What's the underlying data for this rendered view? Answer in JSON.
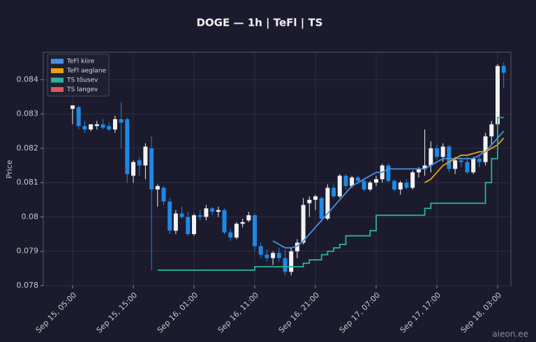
{
  "chart_data": {
    "type": "candlestick",
    "title": "DOGE — 1h  |  TeFl  |  TS",
    "ylabel": "Price",
    "watermark": "aieon.ee",
    "x": [
      "Sep 15, 05:00",
      "Sep 15, 06:00",
      "Sep 15, 07:00",
      "Sep 15, 08:00",
      "Sep 15, 09:00",
      "Sep 15, 10:00",
      "Sep 15, 11:00",
      "Sep 15, 12:00",
      "Sep 15, 13:00",
      "Sep 15, 14:00",
      "Sep 15, 15:00",
      "Sep 15, 16:00",
      "Sep 15, 17:00",
      "Sep 15, 18:00",
      "Sep 15, 19:00",
      "Sep 15, 20:00",
      "Sep 15, 21:00",
      "Sep 15, 22:00",
      "Sep 15, 23:00",
      "Sep 16, 00:00",
      "Sep 16, 01:00",
      "Sep 16, 02:00",
      "Sep 16, 03:00",
      "Sep 16, 04:00",
      "Sep 16, 05:00",
      "Sep 16, 06:00",
      "Sep 16, 07:00",
      "Sep 16, 08:00",
      "Sep 16, 09:00",
      "Sep 16, 10:00",
      "Sep 16, 11:00",
      "Sep 16, 12:00",
      "Sep 16, 13:00",
      "Sep 16, 14:00",
      "Sep 16, 15:00",
      "Sep 16, 16:00",
      "Sep 16, 17:00",
      "Sep 16, 18:00",
      "Sep 16, 19:00",
      "Sep 16, 20:00",
      "Sep 16, 21:00",
      "Sep 16, 22:00",
      "Sep 16, 23:00",
      "Sep 17, 00:00",
      "Sep 17, 01:00",
      "Sep 17, 02:00",
      "Sep 17, 03:00",
      "Sep 17, 04:00",
      "Sep 17, 05:00",
      "Sep 17, 06:00",
      "Sep 17, 07:00",
      "Sep 17, 08:00",
      "Sep 17, 09:00",
      "Sep 17, 10:00",
      "Sep 17, 11:00",
      "Sep 17, 12:00",
      "Sep 17, 13:00",
      "Sep 17, 14:00",
      "Sep 17, 15:00",
      "Sep 17, 16:00",
      "Sep 17, 17:00",
      "Sep 17, 18:00",
      "Sep 17, 19:00",
      "Sep 17, 20:00",
      "Sep 17, 21:00",
      "Sep 17, 22:00",
      "Sep 17, 23:00",
      "Sep 18, 00:00",
      "Sep 18, 01:00",
      "Sep 18, 02:00",
      "Sep 18, 03:00",
      "Sep 18, 04:00"
    ],
    "open": [
      0.08315,
      0.0832,
      0.08265,
      0.08255,
      0.08265,
      0.0827,
      0.08265,
      0.08255,
      0.08285,
      0.08285,
      0.0812,
      0.08165,
      0.0815,
      0.082,
      0.0808,
      0.08085,
      0.08045,
      0.0796,
      0.0801,
      0.08,
      0.0795,
      0.08005,
      0.08,
      0.08025,
      0.08015,
      0.0802,
      0.07955,
      0.0794,
      0.0798,
      0.0799,
      0.08005,
      0.07915,
      0.0789,
      0.0788,
      0.07895,
      0.0788,
      0.0784,
      0.079,
      0.07925,
      0.0804,
      0.0805,
      0.08055,
      0.07995,
      0.08085,
      0.0806,
      0.0812,
      0.0809,
      0.08115,
      0.08105,
      0.0808,
      0.081,
      0.0811,
      0.0815,
      0.08105,
      0.0808,
      0.081,
      0.08085,
      0.0813,
      0.0814,
      0.0815,
      0.082,
      0.08175,
      0.08205,
      0.0814,
      0.08165,
      0.0816,
      0.0813,
      0.0817,
      0.0816,
      0.08235,
      0.0827,
      0.0844
    ],
    "high": [
      0.08325,
      0.08325,
      0.0828,
      0.0827,
      0.0828,
      0.08285,
      0.08275,
      0.08295,
      0.08335,
      0.0829,
      0.08165,
      0.08175,
      0.08215,
      0.08235,
      0.08095,
      0.0809,
      0.08055,
      0.0802,
      0.0803,
      0.08015,
      0.0801,
      0.0802,
      0.08035,
      0.0803,
      0.0803,
      0.08025,
      0.07965,
      0.07985,
      0.07995,
      0.08015,
      0.0801,
      0.07925,
      0.07905,
      0.079,
      0.0791,
      0.07905,
      0.0791,
      0.07935,
      0.08055,
      0.0806,
      0.08065,
      0.0806,
      0.08095,
      0.08095,
      0.08125,
      0.08125,
      0.0812,
      0.0812,
      0.0811,
      0.08105,
      0.0812,
      0.08155,
      0.08155,
      0.0811,
      0.08105,
      0.0811,
      0.08135,
      0.08145,
      0.08255,
      0.0822,
      0.0821,
      0.08215,
      0.0821,
      0.08175,
      0.08175,
      0.08175,
      0.08175,
      0.0818,
      0.08245,
      0.0828,
      0.08445,
      0.0845
    ],
    "low": [
      0.0827,
      0.08255,
      0.08245,
      0.0825,
      0.08255,
      0.08255,
      0.0825,
      0.08245,
      0.082,
      0.081,
      0.081,
      0.0812,
      0.0811,
      0.07845,
      0.0803,
      0.08035,
      0.0795,
      0.0795,
      0.07995,
      0.07945,
      0.07945,
      0.0799,
      0.0799,
      0.08005,
      0.08,
      0.0795,
      0.0793,
      0.07935,
      0.0797,
      0.07985,
      0.079,
      0.0788,
      0.0787,
      0.0786,
      0.0787,
      0.0783,
      0.0783,
      0.0788,
      0.0792,
      0.08,
      0.0802,
      0.07985,
      0.0799,
      0.08055,
      0.08055,
      0.0808,
      0.08085,
      0.08095,
      0.08075,
      0.08075,
      0.0809,
      0.081,
      0.081,
      0.08075,
      0.08065,
      0.0808,
      0.0808,
      0.08115,
      0.0812,
      0.0813,
      0.08165,
      0.0816,
      0.0813,
      0.08125,
      0.08145,
      0.08125,
      0.08125,
      0.08145,
      0.0815,
      0.0821,
      0.0826,
      0.08375
    ],
    "close": [
      0.08325,
      0.08265,
      0.08255,
      0.0827,
      0.0827,
      0.0826,
      0.08255,
      0.08285,
      0.08275,
      0.08125,
      0.0816,
      0.0815,
      0.08205,
      0.0808,
      0.0809,
      0.08045,
      0.0796,
      0.0801,
      0.08,
      0.0795,
      0.08005,
      0.08,
      0.08025,
      0.08015,
      0.0802,
      0.07955,
      0.0794,
      0.0798,
      0.07985,
      0.08005,
      0.07915,
      0.0789,
      0.0788,
      0.07895,
      0.0788,
      0.0784,
      0.079,
      0.07925,
      0.08035,
      0.0805,
      0.0806,
      0.07995,
      0.08085,
      0.0806,
      0.0812,
      0.0809,
      0.08115,
      0.08105,
      0.0808,
      0.081,
      0.0811,
      0.0815,
      0.08105,
      0.0808,
      0.081,
      0.08085,
      0.0813,
      0.0814,
      0.0815,
      0.082,
      0.08175,
      0.08205,
      0.0814,
      0.08165,
      0.0816,
      0.0813,
      0.0817,
      0.0816,
      0.08235,
      0.0827,
      0.0844,
      0.0842
    ],
    "up_color": "#f2f2f2",
    "down_color": "#1e88e5",
    "lines": [
      {
        "name": "TeFl kiire",
        "color": "#4a90e2",
        "step": false,
        "values": [
          null,
          null,
          null,
          null,
          null,
          null,
          null,
          null,
          null,
          null,
          null,
          null,
          null,
          null,
          null,
          null,
          null,
          null,
          null,
          null,
          null,
          null,
          null,
          null,
          null,
          null,
          null,
          null,
          null,
          null,
          null,
          null,
          null,
          0.0793,
          0.0792,
          0.0791,
          0.0791,
          0.07915,
          0.0793,
          0.0795,
          0.0797,
          0.0799,
          0.0801,
          0.0803,
          0.0805,
          0.0807,
          0.0809,
          0.081,
          0.0811,
          0.0812,
          0.0813,
          0.0813,
          0.0814,
          0.0814,
          0.0814,
          0.0814,
          0.0814,
          0.0814,
          0.0814,
          0.0815,
          0.0816,
          0.0817,
          0.0817,
          0.0817,
          0.0817,
          0.0817,
          0.0817,
          0.0818,
          0.0819,
          0.0821,
          0.0823,
          0.0825
        ]
      },
      {
        "name": "TeFl aeglane",
        "color": "#e8a317",
        "step": false,
        "values": [
          null,
          null,
          null,
          null,
          null,
          null,
          null,
          null,
          null,
          null,
          null,
          null,
          null,
          null,
          null,
          null,
          null,
          null,
          null,
          null,
          null,
          null,
          null,
          null,
          null,
          null,
          null,
          null,
          null,
          null,
          null,
          null,
          null,
          null,
          null,
          null,
          null,
          null,
          null,
          null,
          null,
          null,
          null,
          null,
          null,
          null,
          null,
          null,
          null,
          null,
          null,
          null,
          null,
          null,
          null,
          null,
          null,
          null,
          0.081,
          0.0811,
          0.0813,
          0.0815,
          0.0816,
          0.0817,
          0.0818,
          0.0818,
          0.08185,
          0.0819,
          0.0819,
          0.082,
          0.0821,
          0.0823
        ]
      },
      {
        "name": "TS tõusev",
        "color": "#2bb39a",
        "step": true,
        "values": [
          null,
          null,
          null,
          null,
          null,
          null,
          null,
          null,
          null,
          null,
          null,
          null,
          null,
          null,
          0.07845,
          0.07845,
          0.07845,
          0.07845,
          0.07845,
          0.07845,
          0.07845,
          0.07845,
          0.07845,
          0.07845,
          0.07845,
          0.07845,
          0.07845,
          0.07845,
          0.07845,
          0.07845,
          0.07855,
          0.07855,
          0.07855,
          0.07855,
          0.07855,
          0.07855,
          0.07855,
          0.07855,
          0.07865,
          0.07875,
          0.07875,
          0.0789,
          0.079,
          0.0791,
          0.0792,
          0.07945,
          0.07945,
          0.07945,
          0.07945,
          0.0796,
          0.08005,
          0.08005,
          0.08005,
          0.08005,
          0.08005,
          0.08005,
          0.08005,
          0.08005,
          0.08025,
          0.0804,
          0.0804,
          0.0804,
          0.0804,
          0.0804,
          0.0804,
          0.0804,
          0.0804,
          0.0804,
          0.081,
          0.0817,
          0.0829,
          0.0829
        ]
      },
      {
        "name": "TS langev",
        "color": "#e05555",
        "step": true,
        "values": [
          null,
          null,
          null,
          null,
          null,
          null,
          null,
          null,
          null,
          null,
          null,
          null,
          null,
          null,
          null,
          null,
          null,
          null,
          null,
          null,
          null,
          null,
          null,
          null,
          null,
          null,
          null,
          null,
          null,
          null,
          null,
          null,
          null,
          null,
          null,
          null,
          null,
          null,
          null,
          null,
          null,
          null,
          null,
          null,
          null,
          null,
          null,
          null,
          null,
          null,
          null,
          null,
          null,
          null,
          null,
          null,
          null,
          null,
          null,
          null,
          null,
          null,
          null,
          null,
          null,
          null,
          null,
          null,
          null,
          null,
          null,
          null
        ]
      }
    ],
    "ylim": [
      0.078,
      0.0848
    ],
    "yticks": [
      0.078,
      0.079,
      0.08,
      0.081,
      0.082,
      0.083,
      0.084
    ],
    "xticks": [
      "Sep 15, 05:00",
      "Sep 15, 15:00",
      "Sep 16, 01:00",
      "Sep 16, 11:00",
      "Sep 16, 21:00",
      "Sep 17, 07:00",
      "Sep 17, 17:00",
      "Sep 18, 03:00"
    ],
    "grid": true,
    "legend": "upper left"
  }
}
